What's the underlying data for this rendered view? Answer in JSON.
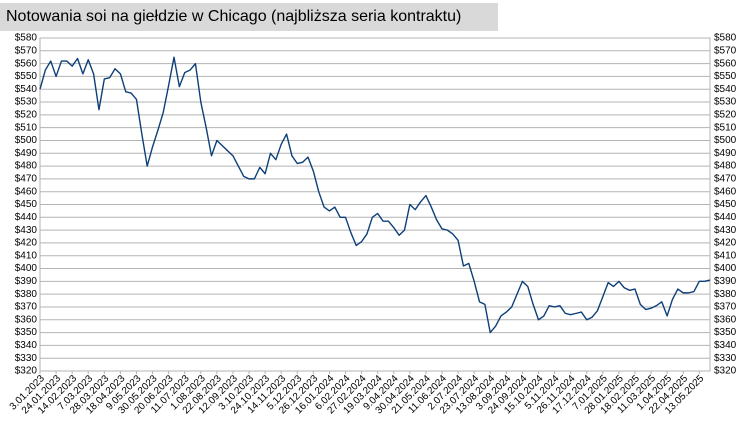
{
  "chart_data": {
    "type": "line",
    "title": "Notowania soi na giełdzie w Chicago (najbliższa seria kontraktu)",
    "color": "#0d3f78",
    "grid": true,
    "xlim": [
      "3.01.2023",
      "27.05.2025"
    ],
    "xticks": [
      "3.01.2023",
      "24.01.2023",
      "14.02.2023",
      "7.03.2023",
      "28.03.2023",
      "18.04.2023",
      "9.05.2023",
      "30.05.2023",
      "20.06.2023",
      "11.07.2023",
      "1.08.2023",
      "22.08.2023",
      "12.09.2023",
      "3.10.2023",
      "24.10.2023",
      "14.11.2023",
      "5.12.2023",
      "26.12.2023",
      "16.01.2024",
      "6.02.2024",
      "27.02.2024",
      "19.03.2024",
      "9.04.2024",
      "30.04.2024",
      "21.05.2024",
      "11.06.2024",
      "2.07.2024",
      "23.07.2024",
      "13.08.2024",
      "3.09.2024",
      "24.09.2024",
      "15.10.2024",
      "5.11.2024",
      "26.11.2024",
      "17.12.2024",
      "7.01.2025",
      "28.01.2025",
      "18.02.2025",
      "11.03.2025",
      "1.04.2025",
      "22.04.2025",
      "13.05.2025"
    ],
    "ylim": [
      320,
      580
    ],
    "yticks": [
      {
        "value": 320,
        "label": "$320"
      },
      {
        "value": 330,
        "label": "$330"
      },
      {
        "value": 340,
        "label": "$340"
      },
      {
        "value": 350,
        "label": "$350"
      },
      {
        "value": 360,
        "label": "$360"
      },
      {
        "value": 370,
        "label": "$370"
      },
      {
        "value": 380,
        "label": "$380"
      },
      {
        "value": 390,
        "label": "$390"
      },
      {
        "value": 400,
        "label": "$400"
      },
      {
        "value": 410,
        "label": "$410"
      },
      {
        "value": 420,
        "label": "$420"
      },
      {
        "value": 430,
        "label": "$430"
      },
      {
        "value": 440,
        "label": "$440"
      },
      {
        "value": 450,
        "label": "$450"
      },
      {
        "value": 460,
        "label": "$460"
      },
      {
        "value": 470,
        "label": "$470"
      },
      {
        "value": 480,
        "label": "$480"
      },
      {
        "value": 490,
        "label": "$490"
      },
      {
        "value": 500,
        "label": "$500"
      },
      {
        "value": 510,
        "label": "$510"
      },
      {
        "value": 520,
        "label": "$520"
      },
      {
        "value": 530,
        "label": "$530"
      },
      {
        "value": 540,
        "label": "$540"
      },
      {
        "value": 550,
        "label": "$550"
      },
      {
        "value": 560,
        "label": "$560"
      },
      {
        "value": 570,
        "label": "$570"
      },
      {
        "value": 580,
        "label": "$580"
      }
    ],
    "x": [
      "3.01.2023",
      "10.01.2023",
      "17.01.2023",
      "24.01.2023",
      "31.01.2023",
      "7.02.2023",
      "14.02.2023",
      "21.02.2023",
      "28.02.2023",
      "7.03.2023",
      "14.03.2023",
      "21.03.2023",
      "28.03.2023",
      "4.04.2023",
      "11.04.2023",
      "18.04.2023",
      "25.04.2023",
      "2.05.2023",
      "9.05.2023",
      "16.05.2023",
      "23.05.2023",
      "30.05.2023",
      "6.06.2023",
      "13.06.2023",
      "20.06.2023",
      "27.06.2023",
      "4.07.2023",
      "11.07.2023",
      "18.07.2023",
      "25.07.2023",
      "1.08.2023",
      "8.08.2023",
      "15.08.2023",
      "22.08.2023",
      "29.08.2023",
      "5.09.2023",
      "12.09.2023",
      "19.09.2023",
      "26.09.2023",
      "3.10.2023",
      "10.10.2023",
      "17.10.2023",
      "24.10.2023",
      "31.10.2023",
      "7.11.2023",
      "14.11.2023",
      "21.11.2023",
      "28.11.2023",
      "5.12.2023",
      "12.12.2023",
      "19.12.2023",
      "26.12.2023",
      "2.01.2024",
      "9.01.2024",
      "16.01.2024",
      "23.01.2024",
      "30.01.2024",
      "6.02.2024",
      "13.02.2024",
      "20.02.2024",
      "27.02.2024",
      "5.03.2024",
      "12.03.2024",
      "19.03.2024",
      "26.03.2024",
      "2.04.2024",
      "9.04.2024",
      "16.04.2024",
      "23.04.2024",
      "30.04.2024",
      "7.05.2024",
      "14.05.2024",
      "21.05.2024",
      "28.05.2024",
      "4.06.2024",
      "11.06.2024",
      "18.06.2024",
      "25.06.2024",
      "2.07.2024",
      "9.07.2024",
      "16.07.2024",
      "23.07.2024",
      "30.07.2024",
      "6.08.2024",
      "13.08.2024",
      "20.08.2024",
      "27.08.2024",
      "3.09.2024",
      "10.09.2024",
      "17.09.2024",
      "24.09.2024",
      "1.10.2024",
      "8.10.2024",
      "15.10.2024",
      "22.10.2024",
      "29.10.2024",
      "5.11.2024",
      "12.11.2024",
      "19.11.2024",
      "26.11.2024",
      "3.12.2024",
      "10.12.2024",
      "17.12.2024",
      "24.12.2024",
      "31.12.2024",
      "7.01.2025",
      "14.01.2025",
      "21.01.2025",
      "28.01.2025",
      "4.02.2025",
      "11.02.2025",
      "18.02.2025",
      "25.02.2025",
      "4.03.2025",
      "11.03.2025",
      "18.03.2025",
      "25.03.2025",
      "1.04.2025",
      "8.04.2025",
      "15.04.2025",
      "22.04.2025",
      "29.04.2025",
      "6.05.2025",
      "13.05.2025",
      "20.05.2025",
      "27.05.2025"
    ],
    "values": [
      540,
      555,
      562,
      550,
      562,
      562,
      558,
      564,
      552,
      563,
      552,
      524,
      548,
      549,
      556,
      552,
      538,
      537,
      532,
      505,
      480,
      495,
      508,
      522,
      543,
      565,
      542,
      553,
      555,
      560,
      530,
      510,
      488,
      500,
      496,
      492,
      488,
      480,
      472,
      470,
      470,
      479,
      474,
      490,
      485,
      497,
      505,
      488,
      482,
      483,
      487,
      476,
      460,
      448,
      445,
      448,
      440,
      440,
      428,
      418,
      421,
      427,
      440,
      443,
      437,
      437,
      432,
      426,
      430,
      450,
      446,
      452,
      457,
      448,
      438,
      431,
      430,
      427,
      422,
      402,
      404,
      390,
      374,
      372,
      350,
      355,
      363,
      366,
      370,
      380,
      390,
      386,
      372,
      360,
      363,
      371,
      370,
      371,
      365,
      364,
      365,
      366,
      360,
      362,
      367,
      378,
      389,
      386,
      390,
      385,
      383,
      384,
      372,
      368,
      369,
      371,
      374,
      363,
      376,
      384,
      381,
      381,
      382,
      390,
      390,
      391
    ]
  }
}
